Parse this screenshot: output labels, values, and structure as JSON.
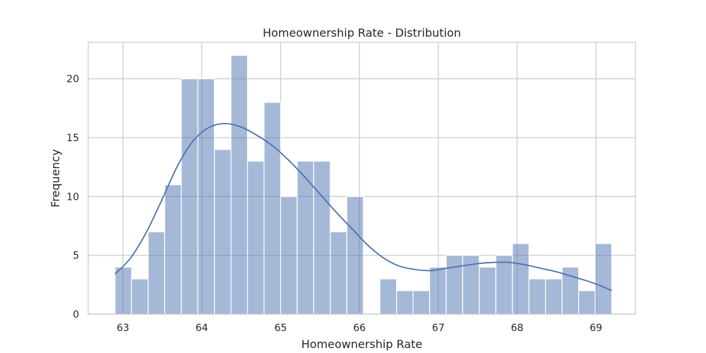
{
  "chart_data": {
    "type": "bar",
    "title": "Homeownership Rate - Distribution",
    "xlabel": "Homeownership Rate",
    "ylabel": "Frequency",
    "xlim": [
      62.56,
      69.5
    ],
    "ylim": [
      0,
      23.1
    ],
    "xticks": [
      63,
      64,
      65,
      66,
      67,
      68,
      69
    ],
    "yticks": [
      0,
      5,
      10,
      15,
      20
    ],
    "bin_start": 62.9,
    "bin_width": 0.21,
    "counts": [
      4,
      3,
      7,
      11,
      20,
      20,
      14,
      22,
      13,
      18,
      10,
      13,
      13,
      7,
      10,
      0,
      3,
      2,
      2,
      4,
      5,
      5,
      4,
      5,
      6,
      3,
      3,
      4,
      2,
      6
    ],
    "kde": {
      "x": [
        62.9,
        63.1,
        63.3,
        63.5,
        63.7,
        63.9,
        64.1,
        64.3,
        64.5,
        64.7,
        64.9,
        65.1,
        65.3,
        65.5,
        65.7,
        65.9,
        66.1,
        66.3,
        66.5,
        66.7,
        66.9,
        67.1,
        67.3,
        67.5,
        67.7,
        67.9,
        68.1,
        68.3,
        68.5,
        68.7,
        68.9,
        69.1,
        69.2
      ],
      "y": [
        3.4,
        4.8,
        7.0,
        9.8,
        12.7,
        14.8,
        15.9,
        16.2,
        15.9,
        15.2,
        14.3,
        13.1,
        11.7,
        10.2,
        8.7,
        7.3,
        5.9,
        4.8,
        4.1,
        3.8,
        3.7,
        3.9,
        4.1,
        4.3,
        4.4,
        4.4,
        4.2,
        3.9,
        3.6,
        3.2,
        2.8,
        2.3,
        2.0
      ]
    },
    "grid": true,
    "bar_color": "#4c72b0",
    "bar_opacity": 0.5,
    "line_color": "#4c72b0",
    "grid_color": "#cccccc"
  }
}
